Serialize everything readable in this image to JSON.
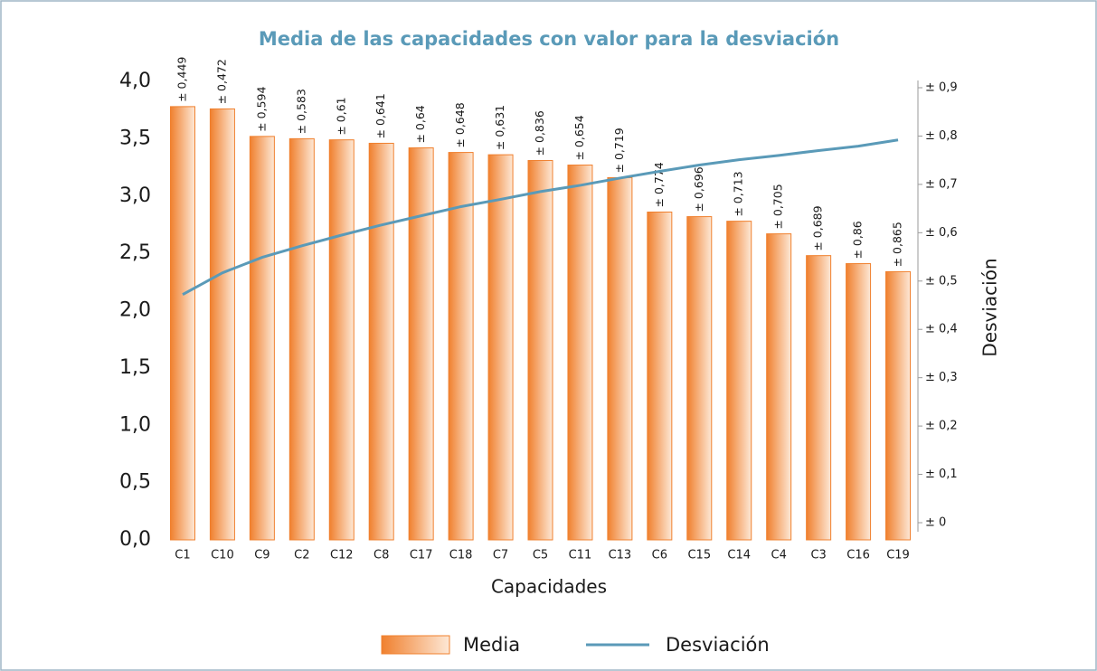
{
  "chart_data": {
    "type": "bar",
    "title": "Media de las capacidades con valor para la desviación",
    "x_label": "Capacidades",
    "y2_label": "Desviación",
    "categories": [
      "C1",
      "C10",
      "C9",
      "C2",
      "C12",
      "C8",
      "C17",
      "C18",
      "C7",
      "C5",
      "C11",
      "C13",
      "C6",
      "C15",
      "C14",
      "C4",
      "C3",
      "C16",
      "C19"
    ],
    "series": [
      {
        "name": "Media",
        "type": "bar",
        "color": "#f0802e",
        "values": [
          3.78,
          3.76,
          3.52,
          3.5,
          3.49,
          3.46,
          3.42,
          3.38,
          3.36,
          3.31,
          3.27,
          3.16,
          2.86,
          2.82,
          2.78,
          2.67,
          2.48,
          2.41,
          2.34
        ],
        "labels": [
          "± 0,449",
          "± 0,472",
          "± 0,594",
          "± 0,583",
          "± 0,61",
          "± 0,641",
          "± 0,64",
          "± 0,648",
          "± 0,631",
          "± 0,836",
          "± 0,654",
          "± 0,719",
          "± 0,774",
          "± 0,696",
          "± 0,713",
          "± 0,705",
          "± 0,689",
          "± 0,86",
          "± 0,865"
        ]
      },
      {
        "name": "Desviación",
        "type": "line",
        "axis": "y2",
        "color": "#5a9ab8",
        "values": [
          0.472,
          0.517,
          0.549,
          0.573,
          0.595,
          0.616,
          0.635,
          0.654,
          0.669,
          0.685,
          0.698,
          0.713,
          0.727,
          0.74,
          0.751,
          0.76,
          0.77,
          0.779,
          0.792
        ]
      }
    ],
    "ylim": [
      0,
      4.0
    ],
    "yticks": [
      {
        "value": 0,
        "label": "0,0"
      },
      {
        "value": 0.5,
        "label": "0,5"
      },
      {
        "value": 1,
        "label": "1,0"
      },
      {
        "value": 1.5,
        "label": "1,5"
      },
      {
        "value": 2,
        "label": "2,0"
      },
      {
        "value": 2.5,
        "label": "2,5"
      },
      {
        "value": 3,
        "label": "3,0"
      },
      {
        "value": 3.5,
        "label": "3,5"
      },
      {
        "value": 4,
        "label": "4,0"
      }
    ],
    "y2lim": [
      0,
      0.9
    ],
    "y2ticks": [
      {
        "value": 0,
        "label": "± 0"
      },
      {
        "value": 0.1,
        "label": "± 0,1"
      },
      {
        "value": 0.2,
        "label": "± 0,2"
      },
      {
        "value": 0.3,
        "label": "± 0,3"
      },
      {
        "value": 0.4,
        "label": "± 0,4"
      },
      {
        "value": 0.5,
        "label": "± 0,5"
      },
      {
        "value": 0.6,
        "label": "± 0,6"
      },
      {
        "value": 0.7,
        "label": "± 0,7"
      },
      {
        "value": 0.8,
        "label": "± 0,8"
      },
      {
        "value": 0.9,
        "label": "± 0,9"
      }
    ]
  }
}
